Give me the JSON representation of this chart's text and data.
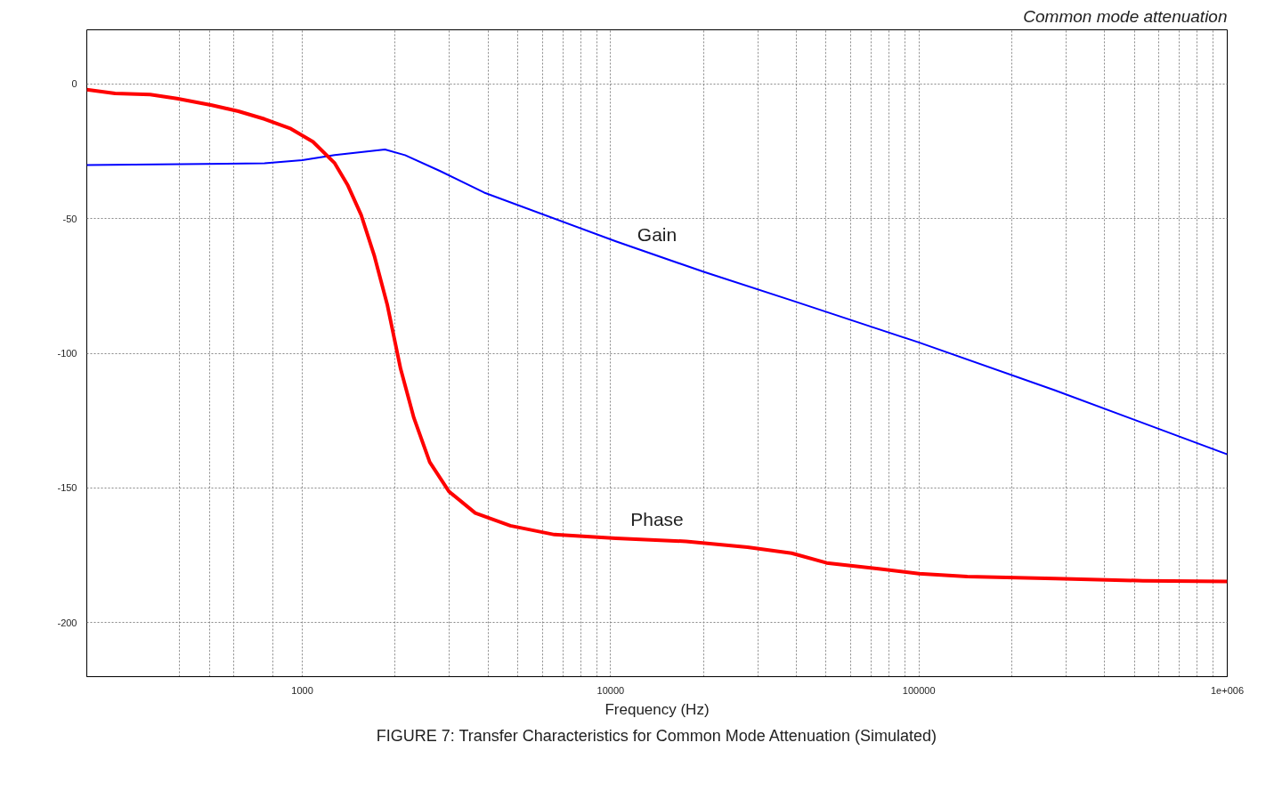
{
  "chart_data": {
    "type": "line",
    "title": "Common mode attenuation",
    "xlabel": "Frequency (Hz)",
    "annotations": [
      "FIGURE 7: Transfer Characteristics for Common Mode Attenuation (Simulated)"
    ],
    "log": "x",
    "grid": true,
    "marker": "none",
    "line_style": "solid",
    "xlim": [
      200,
      1000000
    ],
    "ylim": [
      -220,
      20
    ],
    "xticks": [
      {
        "value": 400,
        "label": null
      },
      {
        "value": 500,
        "label": null
      },
      {
        "value": 600,
        "label": null
      },
      {
        "value": 800,
        "label": null
      },
      1000,
      {
        "value": 2000,
        "label": null
      },
      {
        "value": 3000,
        "label": null
      },
      {
        "value": 4000,
        "label": null
      },
      {
        "value": 5000,
        "label": null
      },
      {
        "value": 6000,
        "label": null
      },
      {
        "value": 7000,
        "label": null
      },
      {
        "value": 8000,
        "label": null
      },
      {
        "value": 9000,
        "label": null
      },
      10000,
      {
        "value": 20000,
        "label": null
      },
      {
        "value": 30000,
        "label": null
      },
      {
        "value": 40000,
        "label": null
      },
      {
        "value": 50000,
        "label": null
      },
      {
        "value": 60000,
        "label": null
      },
      {
        "value": 70000,
        "label": null
      },
      {
        "value": 80000,
        "label": null
      },
      {
        "value": 90000,
        "label": null
      },
      100000,
      {
        "value": 200000,
        "label": null
      },
      {
        "value": 300000,
        "label": null
      },
      {
        "value": 400000,
        "label": null
      },
      {
        "value": 500000,
        "label": null
      },
      {
        "value": 600000,
        "label": null
      },
      {
        "value": 700000,
        "label": null
      },
      {
        "value": 800000,
        "label": null
      },
      {
        "value": 900000,
        "label": null
      },
      {
        "value": 1000000,
        "label": "1e+006"
      }
    ],
    "yticks": [
      0,
      -50,
      -100,
      -150,
      -200
    ],
    "series": [
      {
        "name": "Gain",
        "color": "#0000ff",
        "x": [
          200,
          754,
          1000,
          1274,
          1854,
          2154,
          2800,
          3890,
          10400,
          20050,
          38650,
          100000,
          276600,
          1000000
        ],
        "values": [
          -30.2,
          -29.5,
          -28.4,
          -26.5,
          -24.4,
          -26.5,
          -32.4,
          -40.4,
          -58.5,
          -69.8,
          -80.4,
          -96,
          -113.8,
          -137.5
        ]
      },
      {
        "name": "Phase",
        "color": "#ff0000",
        "x": [
          200,
          247,
          321,
          392,
          509,
          620,
          754,
          918,
          1082,
          1274,
          1406,
          1552,
          1714,
          1888,
          2084,
          2301,
          2590,
          2990,
          3640,
          4730,
          6570,
          10400,
          17580,
          27800,
          38650,
          50200,
          74000,
          100000,
          143500,
          276600,
          532000,
          1000000
        ],
        "values": [
          -2.2,
          -3.6,
          -4,
          -5.5,
          -8,
          -10.2,
          -13.1,
          -16.7,
          -21.5,
          -29.5,
          -37.8,
          -48.7,
          -64,
          -82.2,
          -105.8,
          -124,
          -140.4,
          -151.3,
          -159.3,
          -164,
          -167.3,
          -168.7,
          -169.8,
          -172,
          -174.2,
          -177.8,
          -180,
          -181.8,
          -182.9,
          -183.6,
          -184.4,
          -184.7
        ]
      }
    ]
  }
}
